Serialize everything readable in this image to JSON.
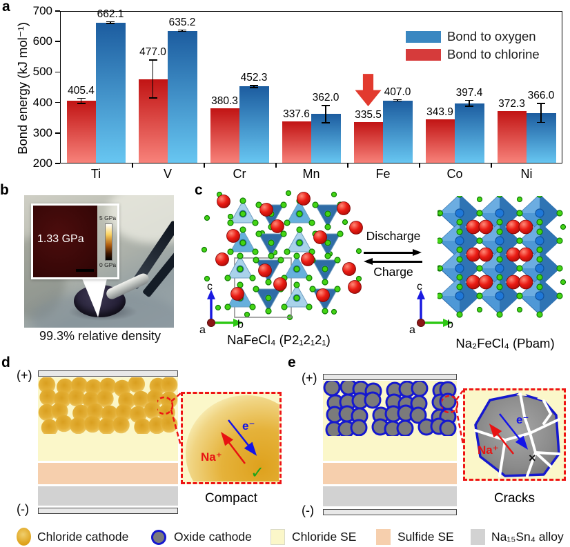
{
  "figure": {
    "panel_labels": {
      "a": "a",
      "b": "b",
      "c": "c",
      "d": "d",
      "e": "e"
    }
  },
  "chart_data": {
    "type": "bar",
    "title": "",
    "xlabel": "",
    "ylabel": "Bond energy (kJ mol⁻¹)",
    "ylim": [
      200,
      700
    ],
    "yticks": [
      200,
      300,
      400,
      500,
      600,
      700
    ],
    "grid": false,
    "categories": [
      "Ti",
      "V",
      "Cr",
      "Mn",
      "Fe",
      "Co",
      "Ni"
    ],
    "series": [
      {
        "name": "Bond to chlorine",
        "color_top": "#c11414",
        "color_bottom": "#f8837b",
        "values": [
          405.4,
          477.0,
          380.3,
          337.6,
          335.5,
          343.9,
          372.3
        ],
        "errors": [
          10,
          64,
          0,
          0,
          0,
          0,
          0
        ]
      },
      {
        "name": "Bond to oxygen",
        "color_top": "#1c5c9f",
        "color_bottom": "#68c7f2",
        "values": [
          662.1,
          635.2,
          452.3,
          362.0,
          407.0,
          397.4,
          366.0
        ],
        "errors": [
          4,
          4,
          5,
          30,
          4,
          11,
          33
        ]
      }
    ],
    "legend": {
      "position": "top-right",
      "entries": [
        {
          "label": "Bond to oxygen",
          "color": "#3a87c1"
        },
        {
          "label": "Bond to chlorine",
          "color": "#d63b3b"
        }
      ]
    },
    "annotation": {
      "type": "down-arrow",
      "color": "#e23a2e",
      "category": "Fe",
      "series": "Bond to chlorine"
    }
  },
  "panel_b": {
    "inset_value": "1.33 GPa",
    "scale_top": "5 GPa",
    "scale_bottom": "0 GPa",
    "caption": "99.3% relative density"
  },
  "panel_c": {
    "forward": "Discharge",
    "backward": "Charge",
    "left_formula": "NaFeCl₄ (P2₁2₁2₁)",
    "right_formula": "Na₂FeCl₄ (Pbam)",
    "axis": {
      "up": "c",
      "right": "b",
      "out": "a"
    }
  },
  "panel_d": {
    "positive": "(+)",
    "negative": "(-)",
    "ion": "Na⁺",
    "electron": "e⁻",
    "mark": "✓",
    "caption": "Compact"
  },
  "panel_e": {
    "positive": "(+)",
    "negative": "(-)",
    "ion": "Na⁺",
    "electron": "e⁻",
    "mark": "×",
    "caption": "Cracks"
  },
  "legend": {
    "items": [
      {
        "label": "Chloride cathode",
        "swatch": "chloride-cathode"
      },
      {
        "label": "Oxide cathode",
        "swatch": "oxide-cathode"
      },
      {
        "label": "Chloride SE",
        "swatch": "chloride-se"
      },
      {
        "label": "Sulfide SE",
        "swatch": "sulfide-se"
      },
      {
        "label": "Na₁₅Sn₄ alloy",
        "swatch": "alloy"
      }
    ]
  },
  "colors": {
    "chloride_se": "#fbf7c9",
    "sulfide_se": "#f6cfad",
    "alloy": "#d2d2d2",
    "electrode": "#e8e8e8",
    "electrode_border": "#4a4a4a",
    "cathode_gold_center": "#dfa41f",
    "cathode_gold_edge": "#f0d57f",
    "oxide_fill": "#7b7b7b",
    "oxide_stroke": "#1518cf",
    "inset_border": "#ee1414",
    "ion_red": "#e81212",
    "electron_blue": "#1414e8",
    "check_green": "#1ba51b"
  }
}
